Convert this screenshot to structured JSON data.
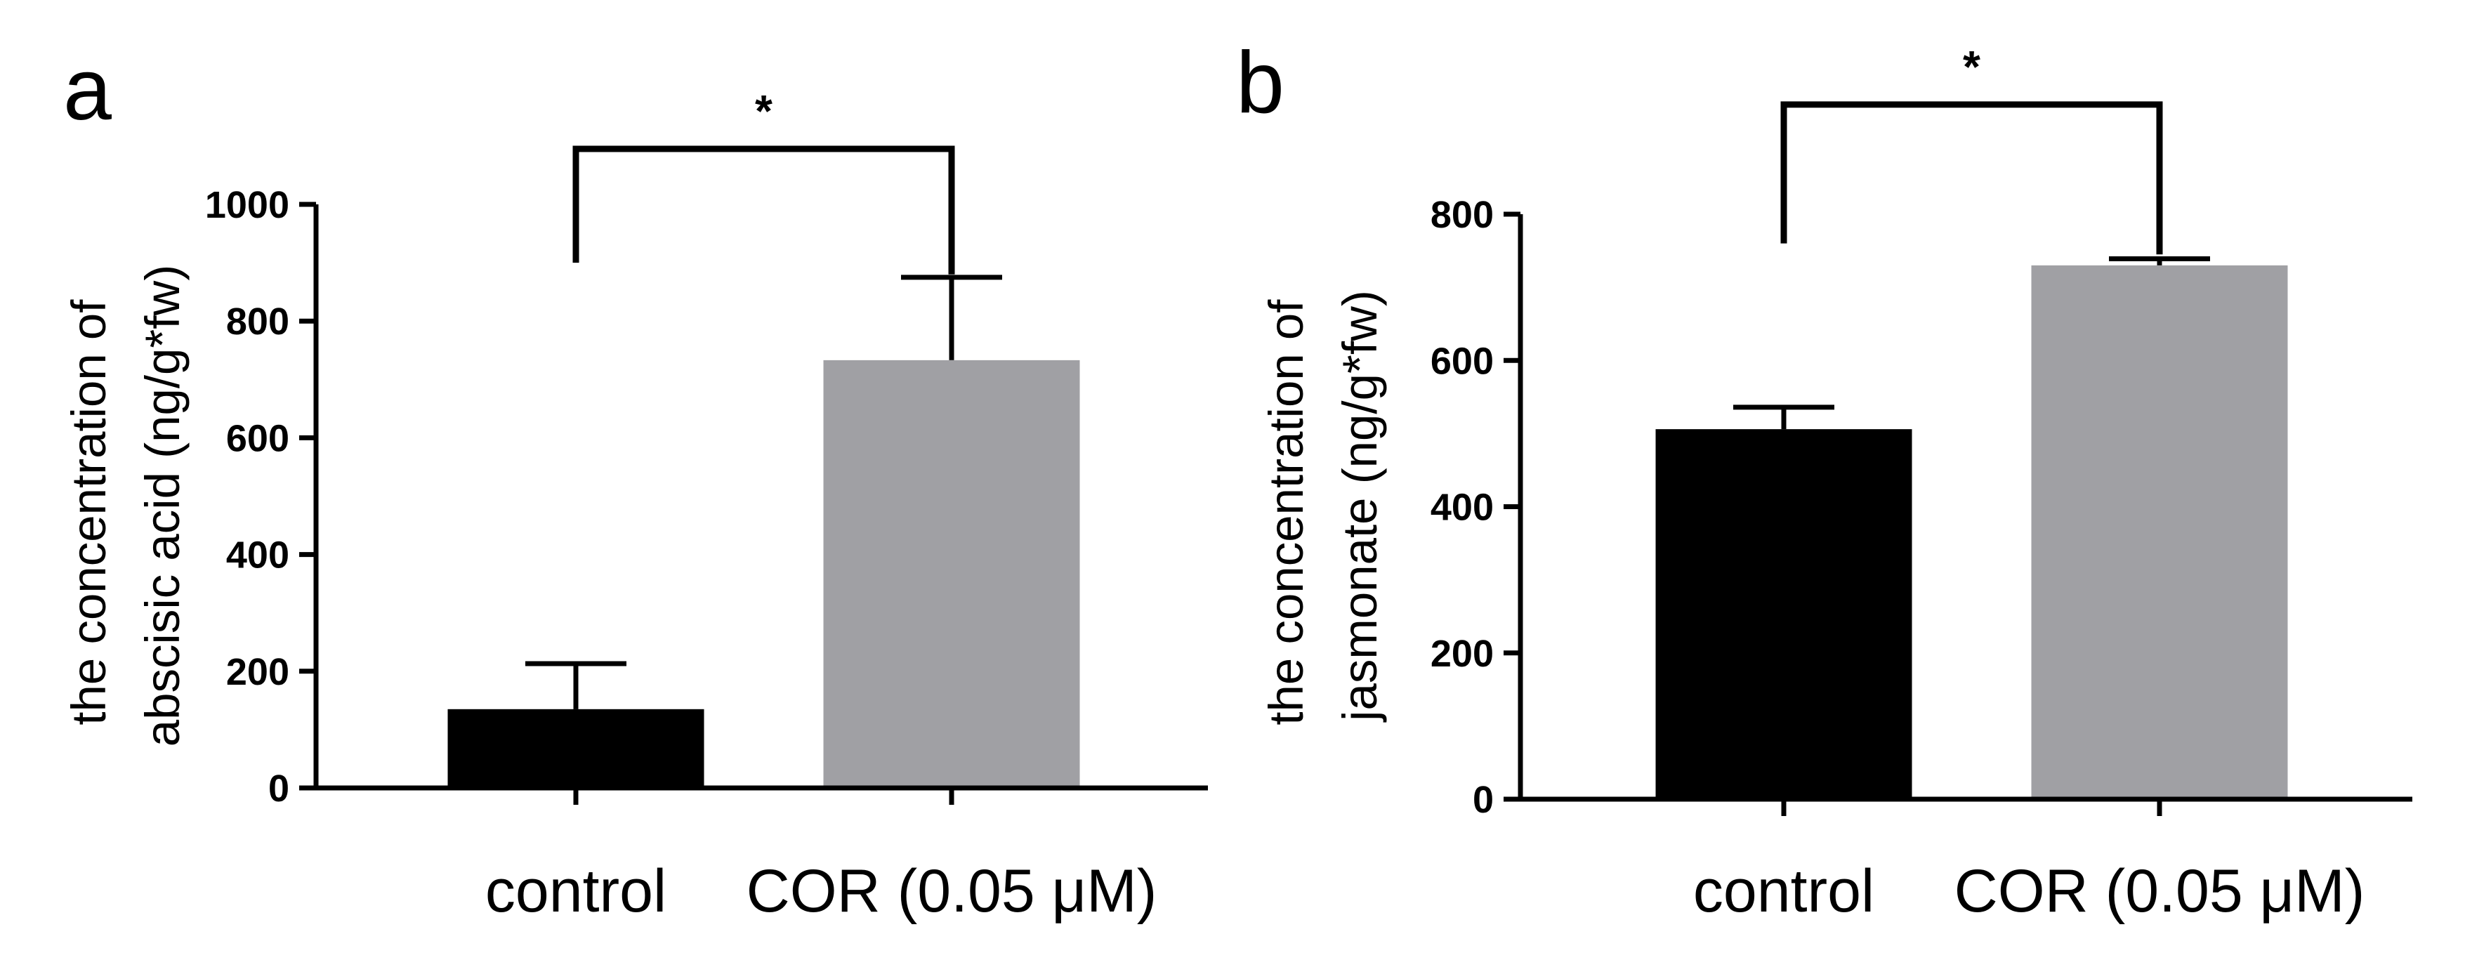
{
  "chart_data": [
    {
      "panel_label": "a",
      "type": "bar",
      "categories": [
        "control",
        "COR (0.05 μM)"
      ],
      "values": [
        135,
        733
      ],
      "errors": [
        78,
        142
      ],
      "bar_colors": [
        "#000000",
        "#a0a0a4"
      ],
      "ylabel_lines": [
        "the concentration of",
        "abscisic acid (ng/g*fw)"
      ],
      "ylim": [
        0,
        1000
      ],
      "yticks": [
        0,
        200,
        400,
        600,
        800,
        1000
      ],
      "significance": {
        "label": "*",
        "between": [
          0,
          1
        ],
        "left_start": 900,
        "right_start": 880,
        "top": 1095
      },
      "grid": false,
      "legend": "none"
    },
    {
      "panel_label": "b",
      "type": "bar",
      "categories": [
        "control",
        "COR (0.05 μM)"
      ],
      "values": [
        506,
        730
      ],
      "errors": [
        30,
        9
      ],
      "bar_colors": [
        "#000000",
        "#a0a0a4"
      ],
      "ylabel_lines": [
        "the concentration of",
        "jasmonate (ng/g*fw)"
      ],
      "ylim": [
        0,
        800
      ],
      "yticks": [
        0,
        200,
        400,
        600,
        800
      ],
      "significance": {
        "label": "*",
        "between": [
          0,
          1
        ],
        "left_start": 760,
        "right_start": 745,
        "top": 950
      },
      "grid": false,
      "legend": "none"
    }
  ]
}
